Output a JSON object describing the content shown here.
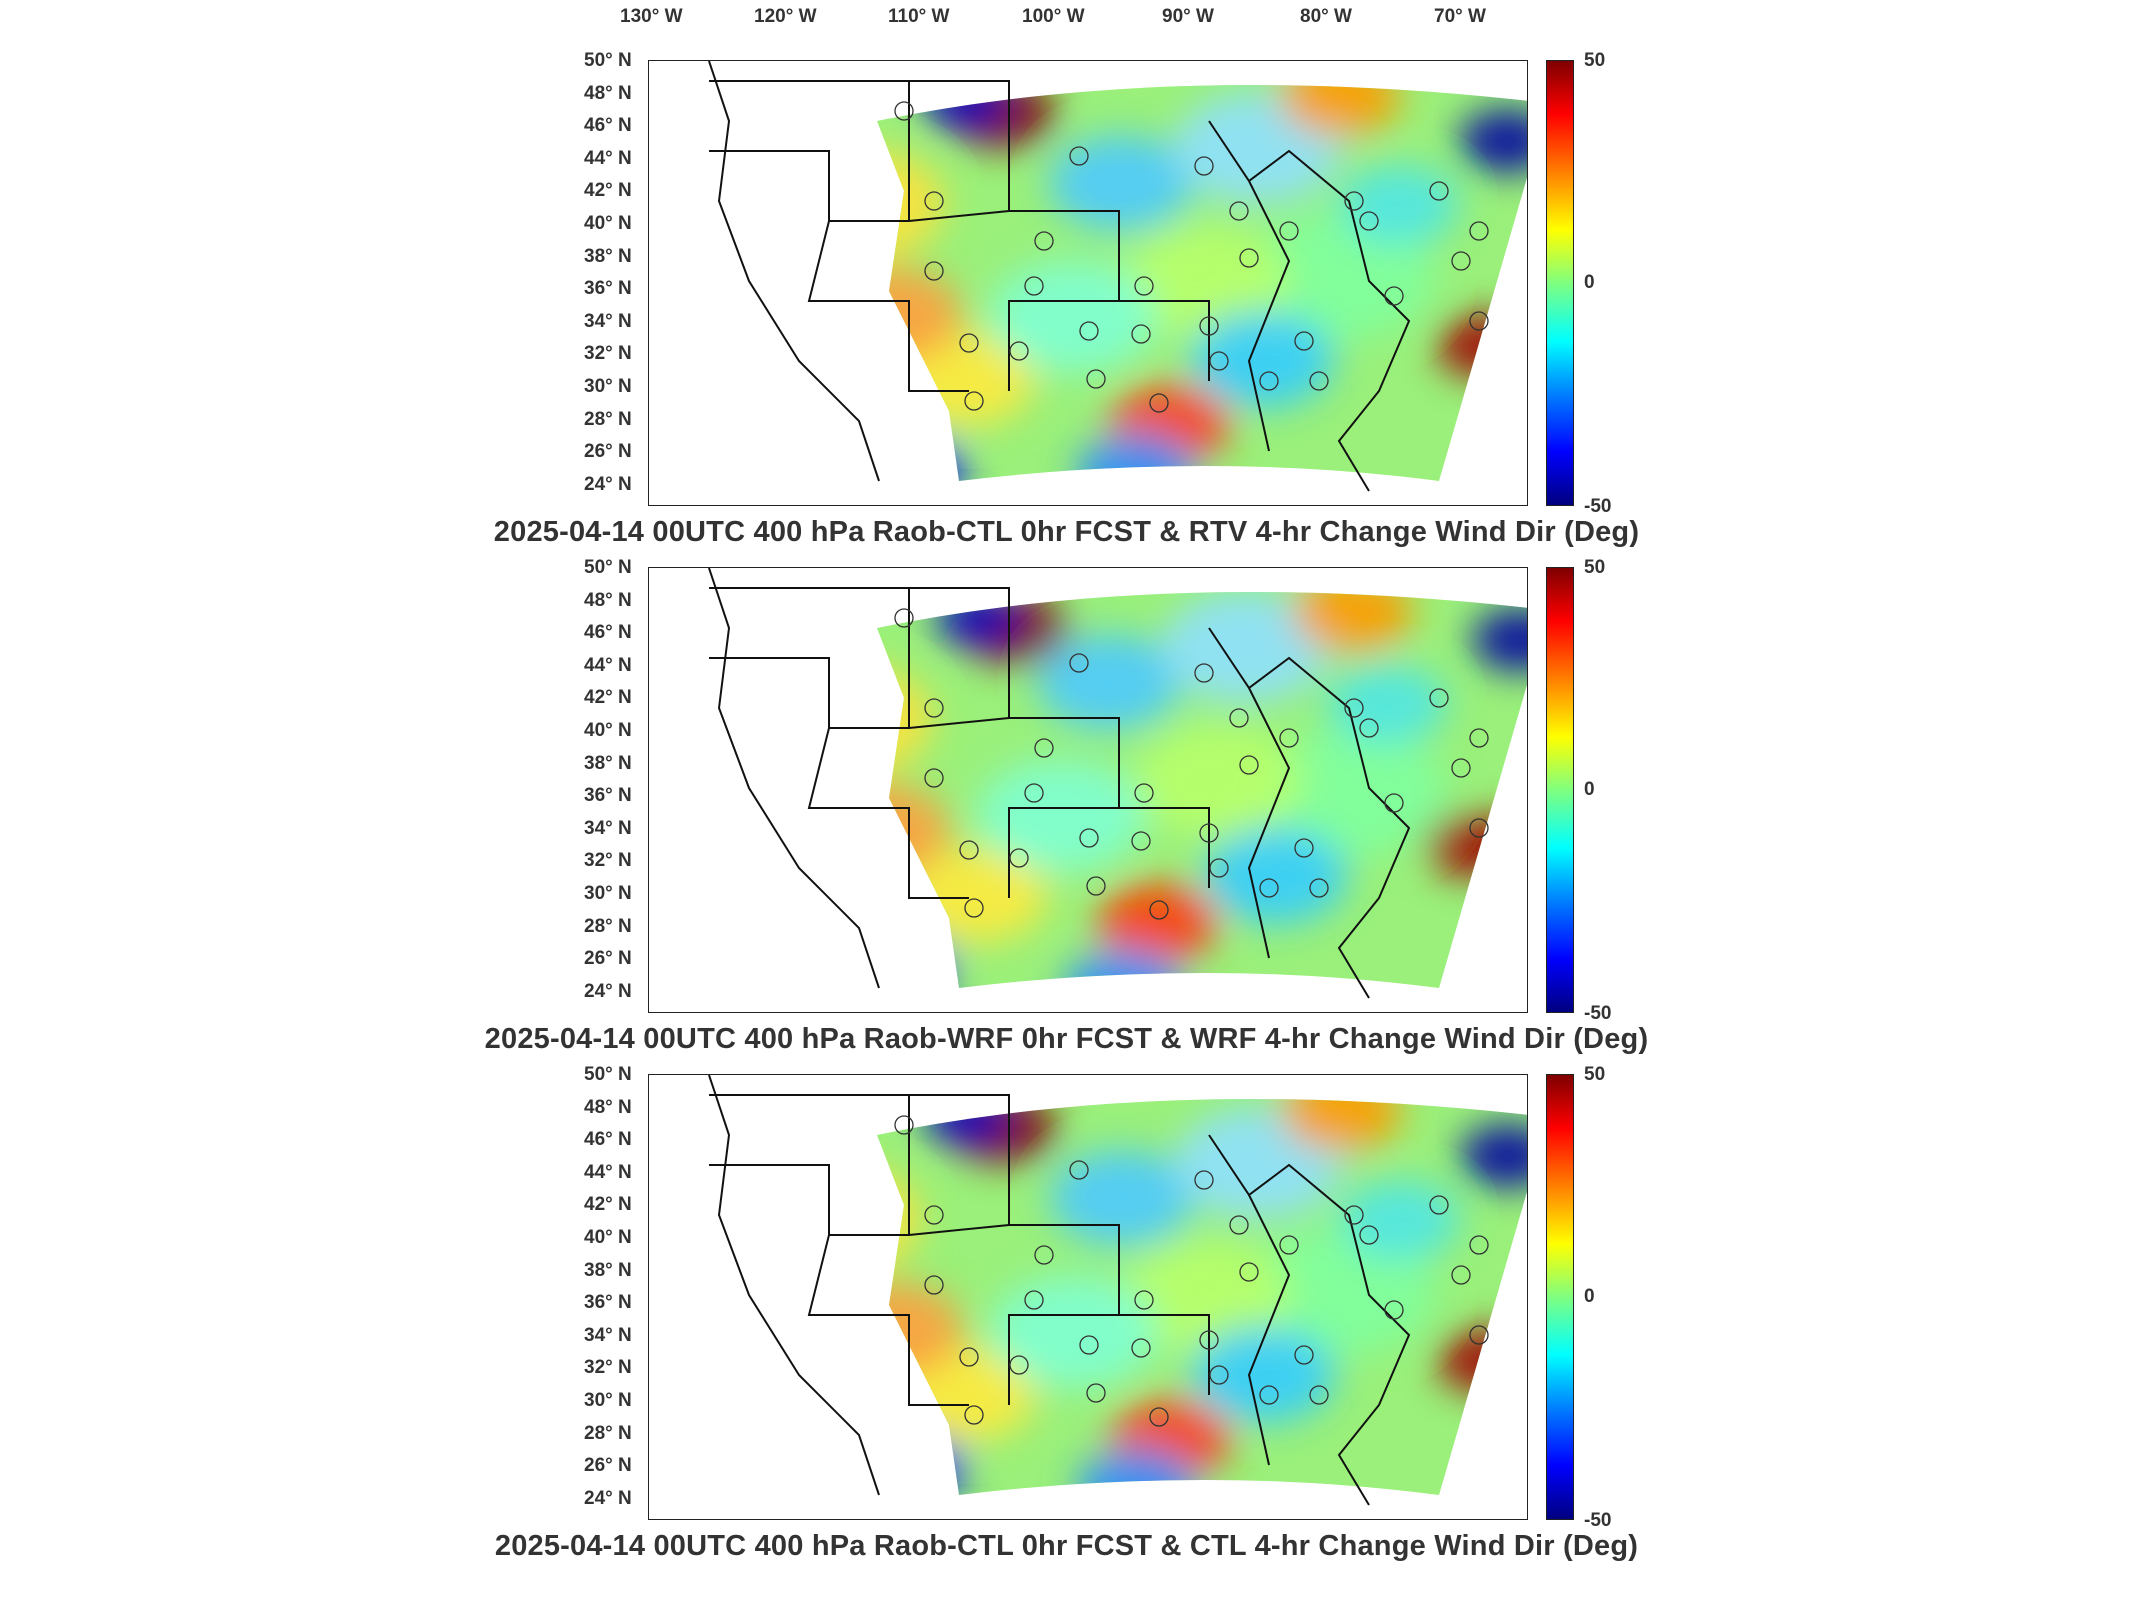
{
  "lon_labels": [
    "130° W",
    "120° W",
    "110° W",
    "100° W",
    "90° W",
    "80° W",
    "70° W"
  ],
  "lat_labels": [
    "50° N",
    "48° N",
    "46° N",
    "44° N",
    "42° N",
    "40° N",
    "38° N",
    "36° N",
    "34° N",
    "32° N",
    "30° N",
    "28° N",
    "26° N",
    "24° N"
  ],
  "colorbar": {
    "max": "50",
    "mid": "0",
    "min": "-50"
  },
  "panels": [
    {
      "title": "2025-04-14 00UTC 400 hPa Raob-CTL 0hr FCST & RTV 4-hr Change Wind Dir (Deg)"
    },
    {
      "title": "2025-04-14 00UTC 400 hPa Raob-WRF 0hr FCST & WRF 4-hr Change Wind Dir (Deg)"
    },
    {
      "title": "2025-04-14 00UTC 400 hPa Raob-CTL 0hr FCST & CTL 4-hr Change Wind Dir (Deg)"
    }
  ],
  "colors": {
    "high": "#7f0000",
    "zero": "#7fff7f",
    "low": "#00007f"
  }
}
